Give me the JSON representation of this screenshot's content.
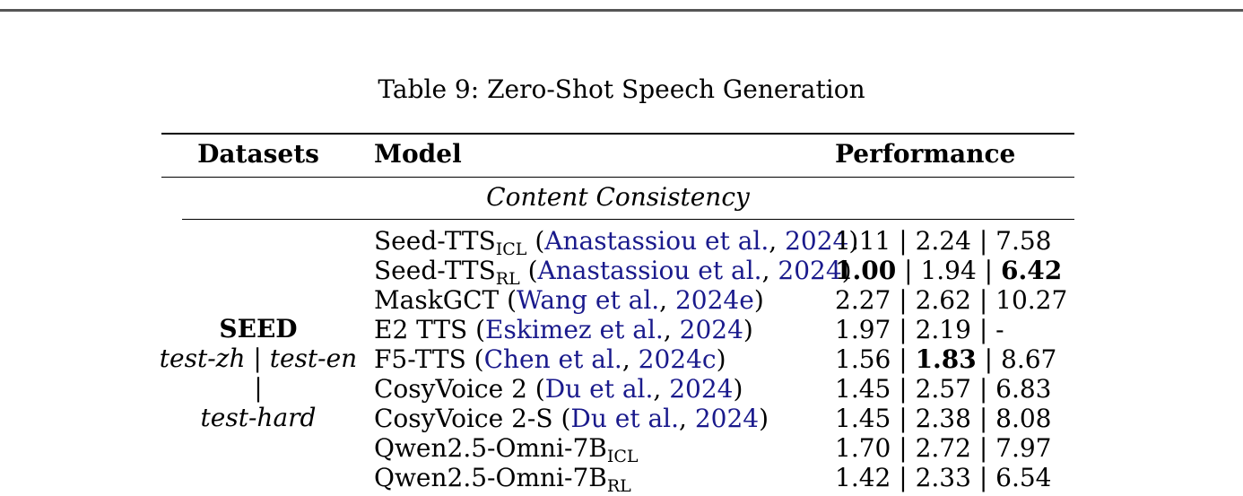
{
  "caption": "Table 9: Zero-Shot Speech Generation",
  "headers": {
    "datasets": "Datasets",
    "model": "Model",
    "performance": "Performance"
  },
  "section": "Content Consistency",
  "dataset": {
    "name": "SEED",
    "splits_line1": "test-zh | test-en |",
    "splits_line2": "test-hard"
  },
  "rows": [
    {
      "model": "Seed-TTS",
      "sub": "ICL",
      "pre": " (",
      "author": "Anastassiou et al.",
      "sep": ", ",
      "year": "2024",
      "post": ")",
      "perf": [
        "1.11",
        "2.24",
        "7.58"
      ],
      "bold": []
    },
    {
      "model": "Seed-TTS",
      "sub": "RL",
      "pre": " (",
      "author": "Anastassiou et al.",
      "sep": ", ",
      "year": "2024",
      "post": ")",
      "perf": [
        "1.00",
        "1.94",
        "6.42"
      ],
      "bold": [
        0,
        2
      ]
    },
    {
      "model": "MaskGCT",
      "sub": "",
      "pre": " (",
      "author": "Wang et al.",
      "sep": ", ",
      "year": "2024e",
      "post": ")",
      "perf": [
        "2.27",
        "2.62",
        "10.27"
      ],
      "bold": []
    },
    {
      "model": "E2 TTS",
      "sub": "",
      "pre": " (",
      "author": "Eskimez et al.",
      "sep": ", ",
      "year": "2024",
      "post": ")",
      "perf": [
        "1.97",
        "2.19",
        "-"
      ],
      "bold": []
    },
    {
      "model": "F5-TTS",
      "sub": "",
      "pre": " (",
      "author": "Chen et al.",
      "sep": ", ",
      "year": "2024c",
      "post": ")",
      "perf": [
        "1.56",
        "1.83",
        "8.67"
      ],
      "bold": [
        1
      ]
    },
    {
      "model": "CosyVoice 2",
      "sub": "",
      "pre": " (",
      "author": "Du et al.",
      "sep": ", ",
      "year": "2024",
      "post": ")",
      "perf": [
        "1.45",
        "2.57",
        "6.83"
      ],
      "bold": []
    },
    {
      "model": "CosyVoice 2-S",
      "sub": "",
      "pre": " (",
      "author": "Du et al.",
      "sep": ", ",
      "year": "2024",
      "post": ")",
      "perf": [
        "1.45",
        "2.38",
        "8.08"
      ],
      "bold": []
    },
    {
      "model": "Qwen2.5-Omni-7B",
      "sub": "ICL",
      "pre": "",
      "author": "",
      "sep": "",
      "year": "",
      "post": "",
      "perf": [
        "1.70",
        "2.72",
        "7.97"
      ],
      "bold": []
    },
    {
      "model": "Qwen2.5-Omni-7B",
      "sub": "RL",
      "pre": "",
      "author": "",
      "sep": "",
      "year": "",
      "post": "",
      "perf": [
        "1.42",
        "2.33",
        "6.54"
      ],
      "bold": []
    }
  ]
}
